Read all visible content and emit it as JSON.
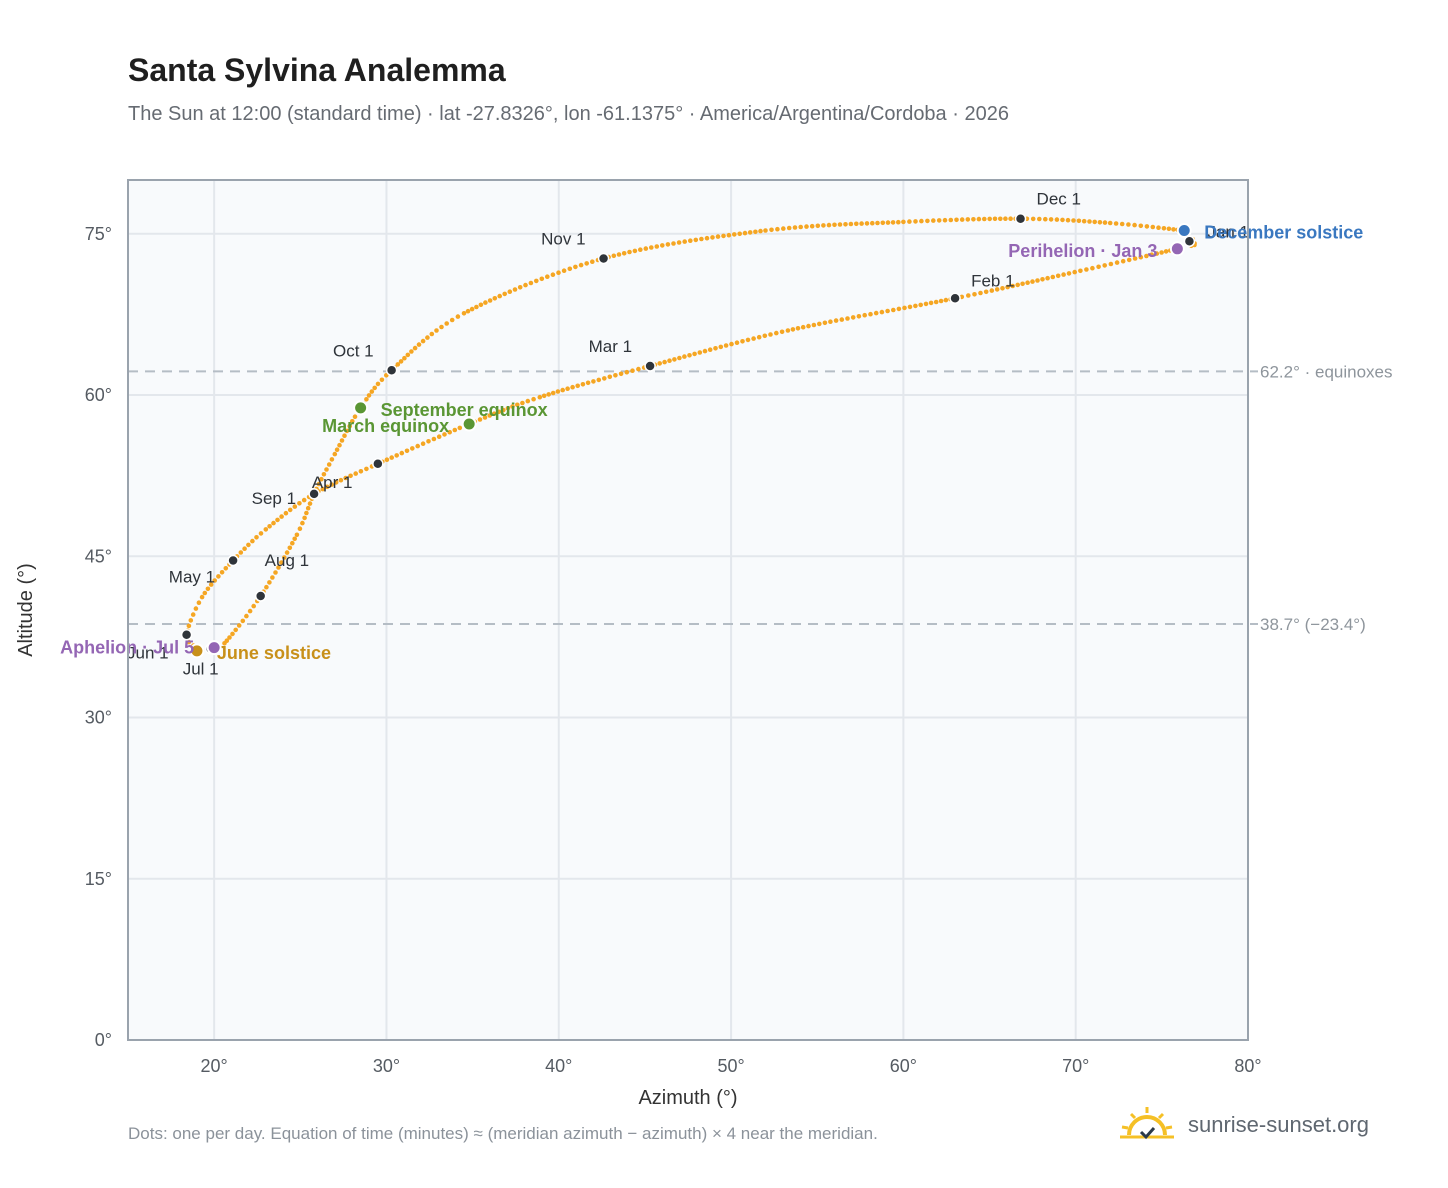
{
  "title": "Santa Sylvina Analemma",
  "subtitle": "The Sun at 12:00 (standard time) · lat -27.8326°, lon -61.1375° · America/Argentina/Cordoba · 2026",
  "footnote": "Dots: one per day. Equation of time (minutes) ≈ (meridian azimuth − azimuth) × 4 near the meridian.",
  "brand": {
    "text": "sunrise-sunset.org",
    "icon": "sun-logo-icon"
  },
  "colors": {
    "curve": "#f5a623",
    "month_dot": "#2f343a",
    "december_solstice": "#3a78c0",
    "june_solstice": "#c8901a",
    "equinox": "#5a9634",
    "perihelion_aphelion": "#9466b4",
    "reference_line": "#b5bdc5",
    "plot_background": "#f8fafc",
    "plot_border": "#9aa3ad",
    "grid": "#e3e7ec"
  },
  "chart_data": {
    "type": "scatter",
    "xlabel": "Azimuth (°)",
    "ylabel": "Altitude (°)",
    "xlim": [
      15,
      80
    ],
    "ylim": [
      0,
      80
    ],
    "xticks": [
      20,
      30,
      40,
      50,
      60,
      70,
      80
    ],
    "yticks": [
      0,
      15,
      30,
      45,
      60,
      75
    ],
    "tick_suffix": "°",
    "grid": true,
    "analemma_path": [
      [
        76.3,
        75.3
      ],
      [
        76.9,
        74.1
      ],
      [
        75.9,
        73.6
      ],
      [
        69.3,
        71.2
      ],
      [
        63.0,
        69.0
      ],
      [
        53.3,
        66.0
      ],
      [
        45.3,
        62.7
      ],
      [
        38.9,
        59.8
      ],
      [
        34.8,
        57.3
      ],
      [
        29.5,
        53.6
      ],
      [
        25.8,
        50.8
      ],
      [
        23.0,
        47.5
      ],
      [
        21.1,
        44.6
      ],
      [
        19.3,
        41.2
      ],
      [
        18.4,
        37.7
      ],
      [
        18.8,
        36.7
      ],
      [
        19.0,
        36.2
      ],
      [
        20.0,
        36.5
      ],
      [
        20.6,
        36.9
      ],
      [
        22.7,
        41.3
      ],
      [
        24.8,
        47.0
      ],
      [
        25.8,
        50.8
      ],
      [
        27.0,
        54.5
      ],
      [
        28.5,
        58.8
      ],
      [
        30.3,
        62.3
      ],
      [
        34.5,
        67.6
      ],
      [
        42.6,
        72.7
      ],
      [
        52.0,
        75.3
      ],
      [
        60.0,
        76.1
      ],
      [
        66.8,
        76.4
      ],
      [
        72.0,
        76.0
      ],
      [
        76.3,
        75.3
      ]
    ],
    "month_markers": [
      {
        "label": "Jan 1",
        "x": 76.6,
        "y": 74.3
      },
      {
        "label": "Feb 1",
        "x": 63.0,
        "y": 69.0
      },
      {
        "label": "Mar 1",
        "x": 45.3,
        "y": 62.7
      },
      {
        "label": "Apr 1",
        "x": 29.5,
        "y": 53.6
      },
      {
        "label": "May 1",
        "x": 21.1,
        "y": 44.6
      },
      {
        "label": "Jun 1",
        "x": 18.4,
        "y": 37.7
      },
      {
        "label": "Jul 1",
        "x": 19.8,
        "y": 36.4
      },
      {
        "label": "Aug 1",
        "x": 22.7,
        "y": 41.3
      },
      {
        "label": "Sep 1",
        "x": 25.8,
        "y": 50.8
      },
      {
        "label": "Oct 1",
        "x": 30.3,
        "y": 62.3
      },
      {
        "label": "Nov 1",
        "x": 42.6,
        "y": 72.7
      },
      {
        "label": "Dec 1",
        "x": 66.8,
        "y": 76.4
      }
    ],
    "events": [
      {
        "label": "December solstice",
        "x": 76.3,
        "y": 75.3,
        "color_key": "december_solstice"
      },
      {
        "label": "Perihelion · Jan 3",
        "x": 75.9,
        "y": 73.6,
        "color_key": "perihelion_aphelion"
      },
      {
        "label": "March equinox",
        "x": 34.8,
        "y": 57.3,
        "color_key": "equinox"
      },
      {
        "label": "June solstice",
        "x": 19.0,
        "y": 36.2,
        "color_key": "june_solstice"
      },
      {
        "label": "Aphelion · Jul 5",
        "x": 20.0,
        "y": 36.5,
        "color_key": "perihelion_aphelion"
      },
      {
        "label": "September equinox",
        "x": 28.5,
        "y": 58.8,
        "color_key": "equinox"
      }
    ],
    "reference_lines": [
      {
        "y": 62.2,
        "label": "62.2° · equinoxes"
      },
      {
        "y": 38.7,
        "label": "38.7° (−23.4°)"
      }
    ]
  }
}
